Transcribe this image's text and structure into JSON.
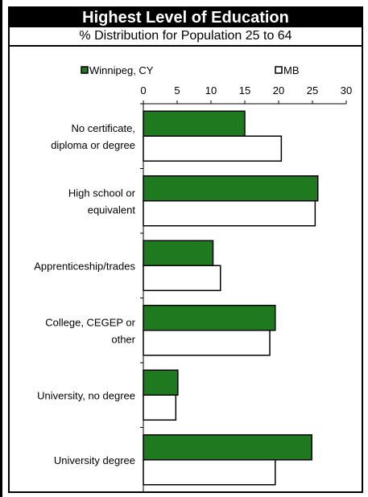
{
  "chart_data": {
    "type": "bar",
    "orientation": "horizontal",
    "title": "Highest Level of Education",
    "subtitle": "% Distribution for Population 25 to 64",
    "categories": [
      [
        "No certificate,",
        "diploma or degree"
      ],
      [
        "High school or",
        "equivalent"
      ],
      [
        "Apprenticeship/trades"
      ],
      [
        "College, CEGEP or",
        "other"
      ],
      [
        "University, no degree"
      ],
      [
        "University degree"
      ]
    ],
    "series": [
      {
        "name": "Winnipeg, CY",
        "color": "#1f7a1f",
        "values": [
          15,
          25.8,
          10.3,
          19.5,
          5.1,
          24.9
        ]
      },
      {
        "name": "MB",
        "color": "#ffffff",
        "values": [
          20.4,
          25.4,
          11.4,
          18.7,
          4.8,
          19.5
        ]
      }
    ],
    "xlim": [
      0,
      30
    ],
    "xticks": [
      "0",
      "5",
      "10",
      "15",
      "20",
      "25",
      "30"
    ],
    "legend_position": "top",
    "grid": false
  }
}
